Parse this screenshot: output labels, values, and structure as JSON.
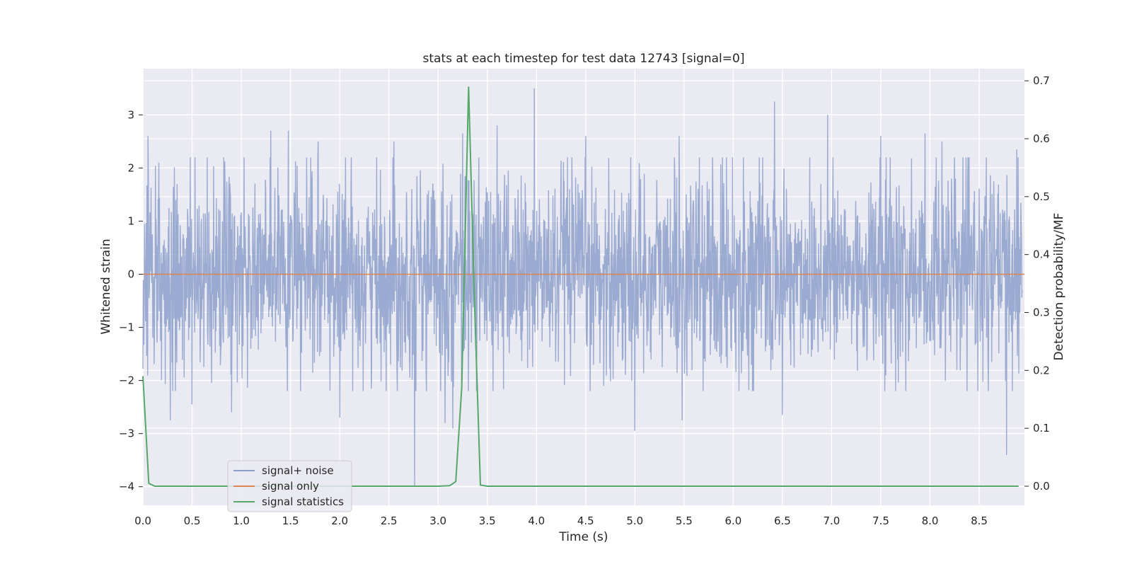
{
  "chart_data": {
    "type": "line",
    "title": "stats at each timestep for test data 12743 [signal=0]",
    "xlabel": "Time (s)",
    "ylabel": "Whitened strain",
    "y2label": "Detection probability/MF",
    "xlim": [
      0.0,
      8.96
    ],
    "ylim": [
      -4.35,
      3.87
    ],
    "y2lim": [
      -0.033,
      0.721
    ],
    "xticks": [
      0.0,
      0.5,
      1.0,
      1.5,
      2.0,
      2.5,
      3.0,
      3.5,
      4.0,
      4.5,
      5.0,
      5.5,
      6.0,
      6.5,
      7.0,
      7.5,
      8.0,
      8.5
    ],
    "xtick_labels": [
      "0.0",
      "0.5",
      "1.0",
      "1.5",
      "2.0",
      "2.5",
      "3.0",
      "3.5",
      "4.0",
      "4.5",
      "5.0",
      "5.5",
      "6.0",
      "6.5",
      "7.0",
      "7.5",
      "8.0",
      "8.5"
    ],
    "yticks": [
      3,
      2,
      1,
      0,
      -1,
      -2,
      -3,
      -4
    ],
    "ytick_labels": [
      "3",
      "2",
      "1",
      "0",
      "−1",
      "−2",
      "−3",
      "−4"
    ],
    "y2ticks": [
      0.7,
      0.6,
      0.5,
      0.4,
      0.3,
      0.2,
      0.1,
      0.0
    ],
    "y2tick_labels": [
      "0.7",
      "0.6",
      "0.5",
      "0.4",
      "0.3",
      "0.2",
      "0.1",
      "0.0"
    ],
    "grid": true,
    "legend_position": "lower-left",
    "series": [
      {
        "name": "signal+ noise",
        "axis": "left",
        "color": "#8c9fca",
        "note_style": "dense noise trace",
        "sample_rate_hz": 2048,
        "typical_range": [
          -1.5,
          1.5
        ],
        "spikes": [
          {
            "x": 0.05,
            "y": 2.6
          },
          {
            "x": 0.28,
            "y": -2.75
          },
          {
            "x": 0.5,
            "y": -2.45
          },
          {
            "x": 0.9,
            "y": -2.6
          },
          {
            "x": 1.3,
            "y": 2.7
          },
          {
            "x": 1.48,
            "y": 2.7
          },
          {
            "x": 1.78,
            "y": 2.5
          },
          {
            "x": 2.0,
            "y": -2.7
          },
          {
            "x": 2.55,
            "y": 2.5
          },
          {
            "x": 2.76,
            "y": -4.0
          },
          {
            "x": 3.07,
            "y": -2.8
          },
          {
            "x": 3.15,
            "y": -2.9
          },
          {
            "x": 3.25,
            "y": 2.65
          },
          {
            "x": 3.6,
            "y": 2.8
          },
          {
            "x": 3.98,
            "y": 3.5
          },
          {
            "x": 4.5,
            "y": 2.6
          },
          {
            "x": 5.0,
            "y": -2.95
          },
          {
            "x": 5.45,
            "y": 2.6
          },
          {
            "x": 5.48,
            "y": -2.75
          },
          {
            "x": 6.42,
            "y": 3.25
          },
          {
            "x": 6.5,
            "y": -2.65
          },
          {
            "x": 6.96,
            "y": 3.0
          },
          {
            "x": 7.5,
            "y": 2.6
          },
          {
            "x": 7.95,
            "y": 2.65
          },
          {
            "x": 8.12,
            "y": 2.5
          },
          {
            "x": 8.78,
            "y": -3.4
          },
          {
            "x": 8.88,
            "y": 2.35
          }
        ]
      },
      {
        "name": "signal only",
        "axis": "left",
        "color": "#dd8452",
        "x": [
          0.0,
          8.96
        ],
        "y": [
          0.0,
          0.0
        ]
      },
      {
        "name": "signal statistics",
        "axis": "right",
        "color": "#55a868",
        "x": [
          0.0,
          0.06,
          0.12,
          0.5,
          1.0,
          1.5,
          2.0,
          2.5,
          3.0,
          3.12,
          3.18,
          3.24,
          3.31,
          3.37,
          3.43,
          3.5,
          4.0,
          5.0,
          6.0,
          7.0,
          8.0,
          8.9
        ],
        "y": [
          0.19,
          0.005,
          0.0,
          0.0,
          0.0,
          0.0,
          0.0,
          0.0,
          0.0,
          0.001,
          0.008,
          0.17,
          0.69,
          0.32,
          0.002,
          0.0,
          0.0,
          0.0,
          0.0,
          0.0,
          0.0,
          0.0
        ]
      }
    ]
  }
}
